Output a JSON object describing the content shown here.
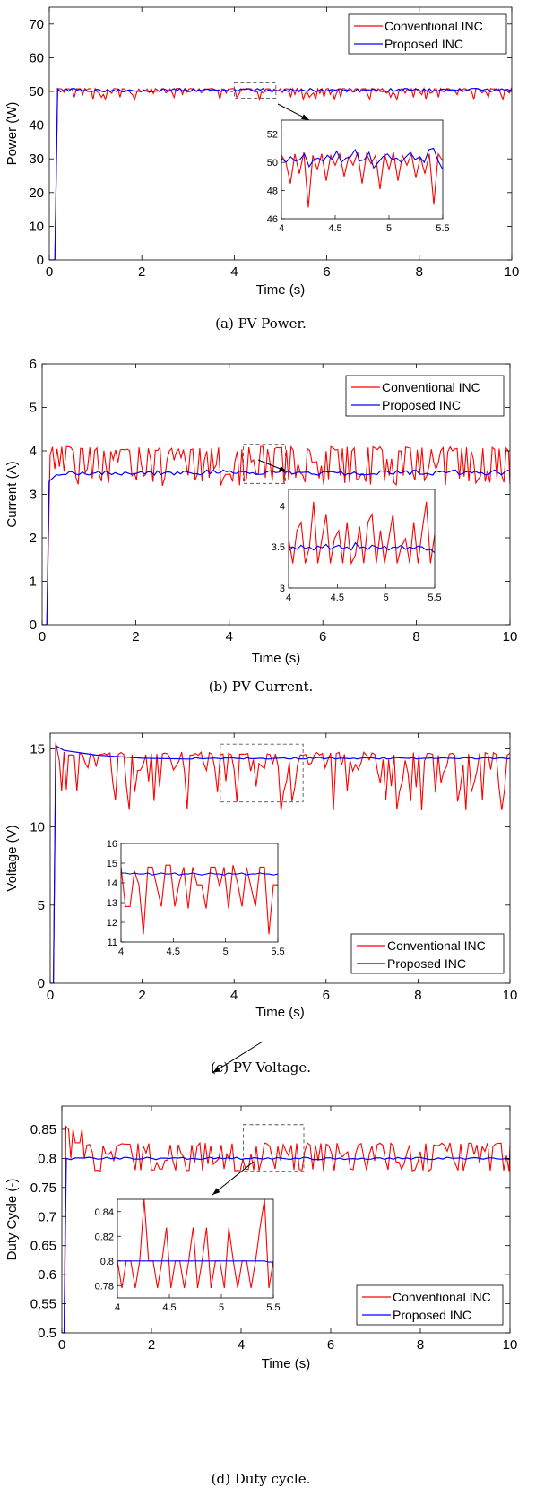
{
  "colors": {
    "conventional": "#ff0000",
    "proposed": "#0000ff",
    "axis": "#000000",
    "zoom_box": "#555555"
  },
  "chart_data": [
    {
      "id": "power",
      "type": "line",
      "caption": "(a) PV Power.",
      "xlabel": "Time (s)",
      "ylabel": "Power (W)",
      "xlim": [
        0,
        10
      ],
      "ylim": [
        0,
        75
      ],
      "xticks": [
        "0",
        "2",
        "4",
        "6",
        "8",
        "10"
      ],
      "yticks": [
        "0",
        "10",
        "20",
        "30",
        "40",
        "50",
        "60",
        "70"
      ],
      "legend_position": "top-right",
      "series": [
        {
          "name": "Conventional INC",
          "color_key": "conventional",
          "startup": [
            [
              0,
              0
            ],
            [
              0.12,
              0
            ],
            [
              0.18,
              50.8
            ]
          ],
          "steady_mean": 50.0,
          "steady_high": 50.9,
          "steady_lows": [
            48.2,
            49.0,
            47.5,
            49.4
          ],
          "step": 0.045
        },
        {
          "name": "Proposed  INC",
          "color_key": "proposed",
          "startup": [
            [
              0,
              0
            ],
            [
              0.12,
              0
            ],
            [
              0.18,
              50.8
            ]
          ],
          "steady_mean": 50.4,
          "ripple": 0.5,
          "step": 0.06
        }
      ],
      "zoom_window": {
        "x": [
          4,
          4.9
        ],
        "y": [
          48,
          52.5
        ]
      },
      "inset": {
        "xlim": [
          4,
          5.5
        ],
        "ylim": [
          46,
          53
        ],
        "xticks": [
          "4",
          "4.5",
          "5",
          "5.5"
        ],
        "yticks": [
          "46",
          "48",
          "50",
          "52"
        ],
        "yticklabels": [
          "46",
          "48",
          "50",
          "52"
        ],
        "conventional_y": [
          50.5,
          50.0,
          48.5,
          50.6,
          49.2,
          50.7,
          46.8,
          50.5,
          49.5,
          50.6,
          48.7,
          50.5,
          49.8,
          50.6,
          49.0,
          50.4,
          49.8,
          50.7,
          48.5,
          50.6,
          49.9,
          50.5,
          48.1,
          50.6,
          49.5,
          50.7,
          48.7,
          50.5,
          49.8,
          50.6,
          48.9,
          50.4,
          49.2,
          50.6,
          47.0,
          50.6,
          50.1
        ],
        "proposed_y": [
          50.3,
          50.0,
          50.4,
          50.1,
          50.2,
          50.6,
          49.7,
          50.2,
          50.3,
          50.1,
          50.5,
          50.2,
          50.8,
          50.0,
          50.3,
          50.4,
          50.9,
          50.1,
          50.2,
          50.7,
          49.6,
          50.0,
          50.4,
          50.6,
          50.2,
          50.3,
          50.0,
          50.4,
          50.7,
          50.2,
          50.4,
          50.0,
          50.9,
          51.0,
          50.1,
          49.5
        ]
      }
    },
    {
      "id": "current",
      "type": "line",
      "caption": "(b) PV Current.",
      "xlabel": "Time (s)",
      "ylabel": "Current (A)",
      "xlim": [
        0,
        10
      ],
      "ylim": [
        0,
        6
      ],
      "xticks": [
        "0",
        "2",
        "4",
        "6",
        "8",
        "10"
      ],
      "yticks": [
        "0",
        "1",
        "2",
        "3",
        "4",
        "5",
        "6"
      ],
      "legend_position": "top-right",
      "series": [
        {
          "name": "Conventional INC",
          "color_key": "conventional",
          "startup": [
            [
              0,
              0
            ],
            [
              0.1,
              0
            ],
            [
              0.17,
              3.9
            ]
          ],
          "steady_mean": 3.6,
          "steady_high": 4.1,
          "steady_lows": [
            3.2,
            3.3,
            3.4,
            3.25
          ],
          "step": 0.05
        },
        {
          "name": "Proposed INC",
          "color_key": "proposed",
          "startup": [
            [
              0,
              0
            ],
            [
              0.1,
              0
            ],
            [
              0.15,
              3.3
            ],
            [
              0.3,
              3.45
            ]
          ],
          "steady_mean": 3.5,
          "ripple": 0.06,
          "step": 0.07
        }
      ],
      "zoom_window": {
        "x": [
          4.3,
          5.2
        ],
        "y": [
          3.25,
          4.15
        ]
      },
      "inset": {
        "xlim": [
          4,
          5.5
        ],
        "ylim": [
          3,
          4.2
        ],
        "xticks": [
          "4",
          "4.5",
          "5",
          "5.5"
        ],
        "yticks": [
          "3",
          "3.5",
          "4"
        ],
        "yticklabels": [
          "3",
          "3.5",
          "4"
        ],
        "conventional_y": [
          3.6,
          3.3,
          3.7,
          3.8,
          3.3,
          3.5,
          4.05,
          3.3,
          3.6,
          3.9,
          3.3,
          3.6,
          3.7,
          3.3,
          3.8,
          3.3,
          3.4,
          3.75,
          3.3,
          3.8,
          3.9,
          3.3,
          3.7,
          3.3,
          3.6,
          3.9,
          3.3,
          3.5,
          3.6,
          3.3,
          3.8,
          3.3,
          3.7,
          4.05,
          3.3,
          3.65
        ],
        "proposed_y": [
          3.45,
          3.5,
          3.47,
          3.52,
          3.48,
          3.5,
          3.46,
          3.51,
          3.49,
          3.53,
          3.47,
          3.5,
          3.52,
          3.48,
          3.5,
          3.46,
          3.55,
          3.49,
          3.5,
          3.47,
          3.52,
          3.5,
          3.48,
          3.51,
          3.46,
          3.5,
          3.49,
          3.52,
          3.47,
          3.5,
          3.48,
          3.51,
          3.5,
          3.46,
          3.47,
          3.43
        ]
      }
    },
    {
      "id": "voltage",
      "type": "line",
      "caption": "(c) PV Voltage.",
      "xlabel": "Time (s)",
      "ylabel": "Voltage (V)",
      "xlim": [
        0,
        10
      ],
      "ylim": [
        0,
        16
      ],
      "xticks": [
        "0",
        "2",
        "4",
        "6",
        "8",
        "10"
      ],
      "yticks": [
        "0",
        "5",
        "10",
        "15"
      ],
      "legend_position": "bottom-right",
      "series": [
        {
          "name": "Conventional INC",
          "color_key": "conventional",
          "startup": [
            [
              0,
              0
            ],
            [
              0.07,
              0
            ],
            [
              0.12,
              15.4
            ],
            [
              0.2,
              14.2
            ],
            [
              0.25,
              12.3
            ],
            [
              0.3,
              14.8
            ],
            [
              0.35,
              12.4
            ],
            [
              0.4,
              14.6
            ]
          ],
          "steady_mean": 13.9,
          "steady_high": 14.8,
          "steady_lows": [
            12.2,
            12.8,
            11.6,
            12.5,
            11.0
          ],
          "step": 0.06
        },
        {
          "name": "Proposed INC",
          "color_key": "proposed",
          "startup": [
            [
              0,
              0
            ],
            [
              0.07,
              0
            ],
            [
              0.12,
              15.2
            ],
            [
              0.3,
              14.9
            ],
            [
              1.0,
              14.6
            ],
            [
              2.0,
              14.4
            ],
            [
              3.0,
              14.35
            ]
          ],
          "steady_mean": 14.4,
          "ripple": 0.05,
          "step": 0.08
        }
      ],
      "zoom_window": {
        "x": [
          3.7,
          5.5
        ],
        "y": [
          11.6,
          15.3
        ]
      },
      "inset": {
        "xlim": [
          4,
          5.5
        ],
        "ylim": [
          11,
          16
        ],
        "xticks": [
          "4",
          "4.5",
          "5",
          "5.5"
        ],
        "yticks": [
          "11",
          "12",
          "13",
          "14",
          "15",
          "16"
        ],
        "yticklabels": [
          "11",
          "12",
          "13",
          "14",
          "15",
          "16"
        ],
        "conventional_y": [
          14.8,
          12.8,
          12.8,
          14.6,
          13.9,
          11.4,
          14.8,
          14.8,
          13.8,
          12.8,
          14.9,
          14.9,
          12.8,
          14.0,
          14.8,
          12.7,
          14.8,
          13.9,
          13.9,
          12.7,
          14.8,
          14.8,
          13.8,
          14.8,
          12.7,
          14.9,
          14.0,
          12.8,
          14.8,
          13.8,
          12.8,
          14.8,
          14.8,
          11.4,
          13.9,
          13.9
        ],
        "proposed_y": [
          14.5,
          14.5,
          14.45,
          14.5,
          14.45,
          14.45,
          14.5,
          14.4,
          14.45,
          14.5,
          14.45,
          14.45,
          14.5,
          14.4,
          14.45,
          14.45,
          14.5,
          14.45,
          14.4,
          14.45,
          14.5,
          14.45,
          14.45,
          14.4,
          14.5,
          14.45,
          14.45,
          14.5,
          14.4,
          14.45,
          14.45,
          14.5,
          14.45,
          14.45,
          14.4,
          14.45
        ]
      }
    },
    {
      "id": "duty",
      "type": "line",
      "caption": "(d) Duty cycle.",
      "xlabel": "Time (s)",
      "ylabel": "Duty Cycle (-)",
      "xlim": [
        0,
        10
      ],
      "ylim": [
        0.5,
        0.89
      ],
      "xticks": [
        "0",
        "2",
        "4",
        "6",
        "8",
        "10"
      ],
      "yticks": [
        "0.5",
        "0.55",
        "0.6",
        "0.65",
        "0.7",
        "0.75",
        "0.8",
        "0.85"
      ],
      "legend_position": "bottom-right",
      "series": [
        {
          "name": "Conventional INC",
          "color_key": "conventional",
          "startup": [
            [
              0,
              0.5
            ],
            [
              0.05,
              0.5
            ],
            [
              0.09,
              0.855
            ],
            [
              0.15,
              0.85
            ],
            [
              0.2,
              0.8
            ],
            [
              0.25,
              0.85
            ],
            [
              0.3,
              0.827
            ],
            [
              0.4,
              0.827
            ],
            [
              0.45,
              0.85
            ],
            [
              0.5,
              0.8
            ]
          ],
          "steady_mean": 0.8,
          "steady_high": 0.827,
          "steady_lows": [
            0.778,
            0.778,
            0.778
          ],
          "step": 0.06
        },
        {
          "name": "Proposed INC",
          "color_key": "proposed",
          "startup": [
            [
              0,
              0.5
            ],
            [
              0.05,
              0.5
            ],
            [
              0.1,
              0.8
            ]
          ],
          "steady_mean": 0.8,
          "ripple": 0.002,
          "step": 0.1
        }
      ],
      "zoom_window": {
        "x": [
          4.05,
          5.4
        ],
        "y": [
          0.778,
          0.858
        ]
      },
      "inset": {
        "xlim": [
          4,
          5.5
        ],
        "ylim": [
          0.77,
          0.85
        ],
        "xticks": [
          "4",
          "4.5",
          "5",
          "5.5"
        ],
        "yticks": [
          "0.78",
          "0.8",
          "0.82",
          "0.84"
        ],
        "yticklabels": [
          "0.78",
          "0.8",
          "0.82",
          "0.84"
        ],
        "conventional_y": [
          0.8,
          0.778,
          0.8,
          0.8,
          0.778,
          0.8,
          0.85,
          0.8,
          0.8,
          0.778,
          0.8,
          0.827,
          0.778,
          0.8,
          0.8,
          0.778,
          0.8,
          0.827,
          0.778,
          0.8,
          0.827,
          0.778,
          0.8,
          0.8,
          0.778,
          0.827,
          0.8,
          0.778,
          0.8,
          0.8,
          0.778,
          0.8,
          0.827,
          0.85,
          0.778,
          0.8
        ],
        "proposed_y": [
          0.8,
          0.8,
          0.8,
          0.8,
          0.8,
          0.8,
          0.8,
          0.8,
          0.8,
          0.8,
          0.8,
          0.8,
          0.8,
          0.8,
          0.8,
          0.8,
          0.8,
          0.8,
          0.8,
          0.8,
          0.8,
          0.8,
          0.8,
          0.8,
          0.8,
          0.8,
          0.8,
          0.8,
          0.8,
          0.8,
          0.8,
          0.8,
          0.8,
          0.8,
          0.799,
          0.799
        ]
      }
    }
  ]
}
